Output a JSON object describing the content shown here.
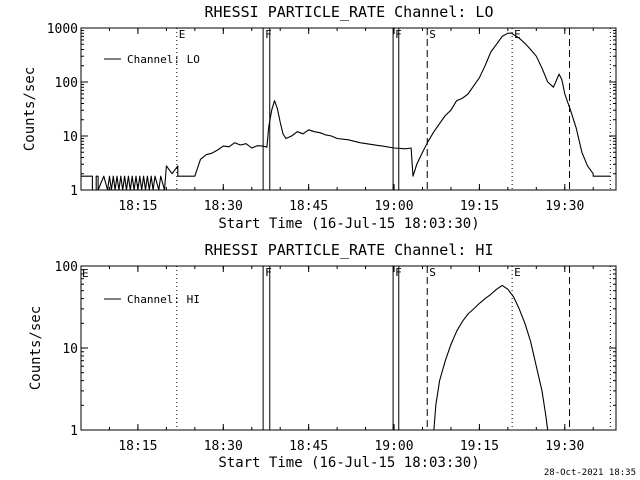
{
  "footer": {
    "date": "28-Oct-2021 18:35"
  },
  "chart_data": [
    {
      "type": "line",
      "title": "RHESSI PARTICLE_RATE Channel: LO",
      "xlabel": "Start Time (16-Jul-15 18:03:30)",
      "ylabel": "Counts/sec",
      "y_scale": "log",
      "ylim": [
        1,
        1000
      ],
      "xlim": [
        "18:05:00",
        "19:39:00"
      ],
      "y_ticks": [
        "1",
        "10",
        "100",
        "1000"
      ],
      "x_ticks": [
        "18:15",
        "18:30",
        "18:45",
        "19:00",
        "19:15",
        "19:30"
      ],
      "grid": false,
      "legend_position": "top-left",
      "series": [
        {
          "name": "Channel: LO",
          "color": "#000000",
          "x": [
            "18:05:00",
            "18:07:00",
            "18:07:00",
            "18:07:40",
            "18:07:40",
            "18:08:00",
            "18:08:00",
            "18:09:00",
            "18:09:40",
            "18:10:00",
            "18:10:20",
            "18:10:40",
            "18:11:00",
            "18:11:20",
            "18:11:40",
            "18:12:00",
            "18:12:20",
            "18:12:40",
            "18:13:00",
            "18:13:20",
            "18:13:40",
            "18:14:00",
            "18:14:20",
            "18:14:40",
            "18:15:00",
            "18:15:20",
            "18:15:40",
            "18:16:00",
            "18:16:20",
            "18:16:40",
            "18:17:00",
            "18:17:20",
            "18:17:40",
            "18:18:00",
            "18:18:40",
            "18:19:00",
            "18:19:40",
            "18:20:00",
            "18:21:00",
            "18:22:00",
            "18:22:00",
            "18:22:40",
            "18:23:20",
            "18:24:00",
            "18:25:00",
            "18:26:00",
            "18:27:00",
            "18:28:00",
            "18:29:00",
            "18:30:00",
            "18:31:00",
            "18:32:00",
            "18:33:00",
            "18:34:00",
            "18:35:00",
            "18:36:00",
            "18:37:00",
            "18:37:40",
            "18:38:00",
            "18:38:30",
            "18:39:00",
            "18:39:30",
            "18:40:00",
            "18:40:30",
            "18:41:00",
            "18:42:00",
            "18:43:00",
            "18:44:00",
            "18:45:00",
            "18:46:00",
            "18:47:00",
            "18:48:00",
            "18:49:00",
            "18:50:00",
            "18:52:00",
            "18:54:00",
            "18:56:00",
            "18:58:00",
            "19:00:00",
            "19:02:00",
            "19:03:00",
            "19:03:20",
            "19:04:00",
            "19:05:00",
            "19:06:00",
            "19:07:00",
            "19:08:00",
            "19:09:00",
            "19:10:00",
            "19:11:00",
            "19:12:00",
            "19:13:00",
            "19:14:00",
            "19:15:00",
            "19:16:00",
            "19:17:00",
            "19:18:00",
            "19:19:00",
            "19:20:00",
            "19:20:40",
            "19:21:00",
            "19:22:00",
            "19:23:00",
            "19:24:00",
            "19:25:00",
            "19:26:00",
            "19:27:00",
            "19:28:00",
            "19:29:00",
            "19:29:30",
            "19:30:00",
            "19:31:00",
            "19:32:00",
            "19:33:00",
            "19:34:00",
            "19:35:00",
            "19:35:00",
            "19:38:00"
          ],
          "y": [
            1.8,
            1.8,
            1.0,
            1.0,
            1.8,
            1.8,
            1.0,
            1.8,
            1.0,
            1.8,
            1.0,
            1.8,
            1.0,
            1.8,
            1.0,
            1.8,
            1.0,
            1.8,
            1.0,
            1.8,
            1.0,
            1.8,
            1.0,
            1.8,
            1.0,
            1.8,
            1.0,
            1.8,
            1.0,
            1.8,
            1.0,
            1.8,
            1.0,
            1.8,
            1.0,
            1.8,
            1.0,
            2.8,
            2.0,
            2.8,
            1.8,
            1.8,
            1.8,
            1.8,
            1.8,
            3.7,
            4.5,
            4.8,
            5.5,
            6.5,
            6.3,
            7.5,
            6.8,
            7.2,
            6.0,
            6.6,
            6.5,
            6.2,
            15,
            30,
            45,
            32,
            18,
            11,
            9,
            10,
            12,
            11,
            13,
            12,
            11.5,
            10.5,
            10,
            9,
            8.5,
            7.5,
            7,
            6.5,
            6,
            5.8,
            6,
            1.8,
            3,
            5,
            8,
            12,
            17,
            24,
            30,
            45,
            50,
            60,
            85,
            120,
            200,
            360,
            500,
            700,
            800,
            800,
            750,
            650,
            520,
            400,
            300,
            180,
            100,
            80,
            140,
            110,
            60,
            30,
            14,
            5,
            2.8,
            2,
            1.8,
            1.8
          ]
        }
      ],
      "vertical_markers": [
        {
          "x": "18:21:50",
          "style": "dotted",
          "label": "E"
        },
        {
          "x": "18:37:00",
          "style": "solid",
          "label": "F"
        },
        {
          "x": "18:38:10",
          "style": "solid",
          "label": ""
        },
        {
          "x": "18:59:50",
          "style": "solid",
          "label": "F"
        },
        {
          "x": "19:00:50",
          "style": "solid",
          "label": ""
        },
        {
          "x": "19:05:50",
          "style": "dashed",
          "label": "S"
        },
        {
          "x": "19:20:45",
          "style": "dotted",
          "label": "E"
        },
        {
          "x": "19:30:50",
          "style": "dashed",
          "label": ""
        },
        {
          "x": "19:38:00",
          "style": "dotted",
          "label": ""
        }
      ]
    },
    {
      "type": "line",
      "title": "RHESSI PARTICLE_RATE Channel: HI",
      "xlabel": "Start Time (16-Jul-15 18:03:30)",
      "ylabel": "Counts/sec",
      "y_scale": "log",
      "ylim": [
        1,
        100
      ],
      "xlim": [
        "18:05:00",
        "19:39:00"
      ],
      "y_ticks": [
        "1",
        "10",
        "100"
      ],
      "x_ticks": [
        "18:15",
        "18:30",
        "18:45",
        "19:00",
        "19:15",
        "19:30"
      ],
      "grid": false,
      "legend_position": "top-left",
      "series": [
        {
          "name": "Channel: HI",
          "color": "#000000",
          "x": [
            "19:07:00",
            "19:07:20",
            "19:08:00",
            "19:09:00",
            "19:10:00",
            "19:11:00",
            "19:12:00",
            "19:13:00",
            "19:14:00",
            "19:15:00",
            "19:16:00",
            "19:17:00",
            "19:18:00",
            "19:19:00",
            "19:20:00",
            "19:21:00",
            "19:22:00",
            "19:23:00",
            "19:24:00",
            "19:25:00",
            "19:26:00",
            "19:26:40",
            "19:27:00"
          ],
          "y": [
            1,
            2,
            4,
            7,
            11,
            16,
            21,
            26,
            30,
            35,
            40,
            45,
            52,
            58,
            52,
            42,
            30,
            20,
            12,
            6,
            3,
            1.5,
            1
          ]
        }
      ],
      "vertical_markers": [
        {
          "x": "18:21:50",
          "style": "dotted",
          "label": ""
        },
        {
          "x": "18:37:00",
          "style": "solid",
          "label": "F"
        },
        {
          "x": "18:38:10",
          "style": "solid",
          "label": ""
        },
        {
          "x": "18:59:50",
          "style": "solid",
          "label": "F"
        },
        {
          "x": "19:00:50",
          "style": "solid",
          "label": ""
        },
        {
          "x": "19:05:50",
          "style": "dashed",
          "label": "S"
        },
        {
          "x": "19:20:45",
          "style": "dotted",
          "label": "E"
        },
        {
          "x": "19:30:50",
          "style": "dashed",
          "label": ""
        },
        {
          "x": "19:38:00",
          "style": "dotted",
          "label": ""
        }
      ],
      "corner_labels": {
        "left": "E"
      }
    }
  ]
}
